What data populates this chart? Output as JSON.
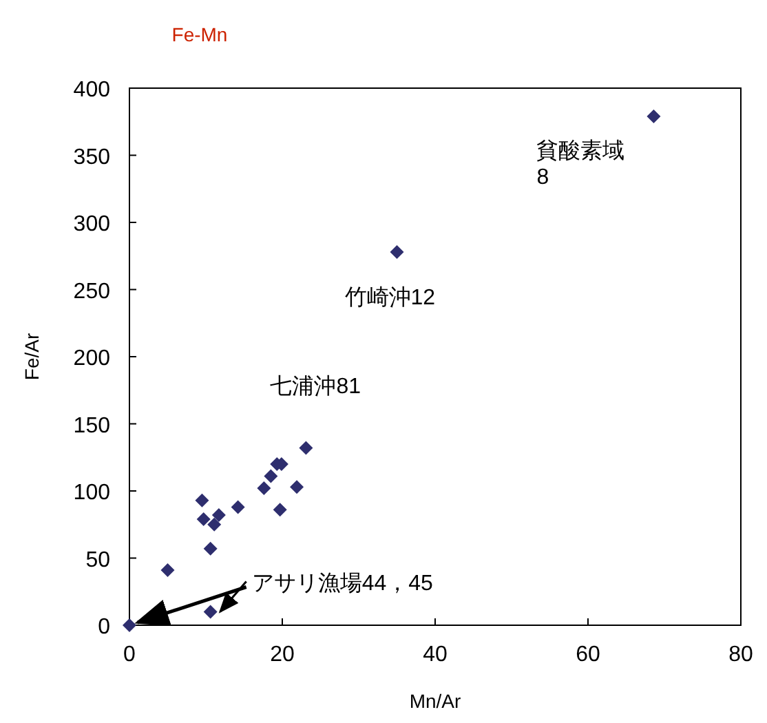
{
  "chart_data": {
    "type": "scatter",
    "title": "Fe-Mn",
    "xlabel": "Mn/Ar",
    "ylabel": "Fe/Ar",
    "xlim": [
      0,
      80
    ],
    "ylim": [
      0,
      400
    ],
    "xticks": [
      0,
      20,
      40,
      60,
      80
    ],
    "yticks": [
      0,
      50,
      100,
      150,
      200,
      250,
      300,
      350,
      400
    ],
    "grid": false,
    "marker": "diamond",
    "series": [
      {
        "color": "#2e2e6e",
        "x": [
          0,
          5.0,
          9.5,
          9.7,
          11.1,
          11.7,
          10.6,
          10.6,
          14.2,
          17.6,
          18.5,
          19.3,
          19.9,
          19.7,
          21.9,
          23.1,
          35,
          68.6
        ],
        "values": [
          0,
          41,
          93,
          79,
          75,
          82,
          57,
          10,
          88,
          102,
          111,
          120,
          120,
          86,
          103,
          132,
          278,
          379
        ]
      }
    ],
    "annotations": [
      {
        "text": "貧酸素域\n8",
        "x": 68.6,
        "y": 379
      },
      {
        "text": "竹崎沖12",
        "x": 35,
        "y": 278
      },
      {
        "text": "七浦沖81",
        "x": 23.1,
        "y": 132
      },
      {
        "text": "アサリ漁場44，45",
        "x": 10.6,
        "y": 10
      }
    ]
  }
}
